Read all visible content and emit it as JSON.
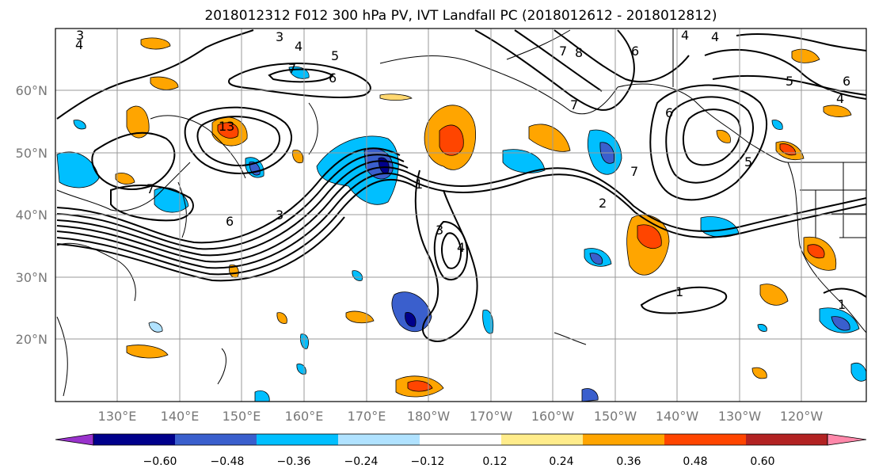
{
  "title": "2018012312 F012 300 hPa PV, IVT Landfall PC (2018012612 - 2018012812)",
  "map": {
    "lat_labels": [
      "60°N",
      "50°N",
      "40°N",
      "30°N",
      "20°N"
    ],
    "lon_labels": [
      "130°E",
      "140°E",
      "150°E",
      "160°E",
      "170°E",
      "180°W",
      "170°W",
      "160°W",
      "150°W",
      "140°W",
      "130°W",
      "120°W"
    ]
  },
  "contour_labels": [
    "3",
    "4",
    "3",
    "4",
    "5",
    "7",
    "6",
    "7",
    "3",
    "6",
    "7",
    "8",
    "6",
    "4",
    "4",
    "5",
    "6",
    "4",
    "13",
    "7",
    "6",
    "3",
    "1",
    "4",
    "7",
    "2",
    "1",
    "5",
    "1"
  ],
  "colorbar": {
    "ticks": [
      "−0.60",
      "−0.48",
      "−0.36",
      "−0.24",
      "−0.12",
      "0.12",
      "0.24",
      "0.36",
      "0.48",
      "0.60"
    ],
    "colors": [
      "#9932cc",
      "#00008b",
      "#3a5fcd",
      "#00bfff",
      "#b0e2ff",
      "#ffffff",
      "#ffec8b",
      "#ffa500",
      "#ff4500",
      "#b22222",
      "#ff88aa"
    ]
  }
}
